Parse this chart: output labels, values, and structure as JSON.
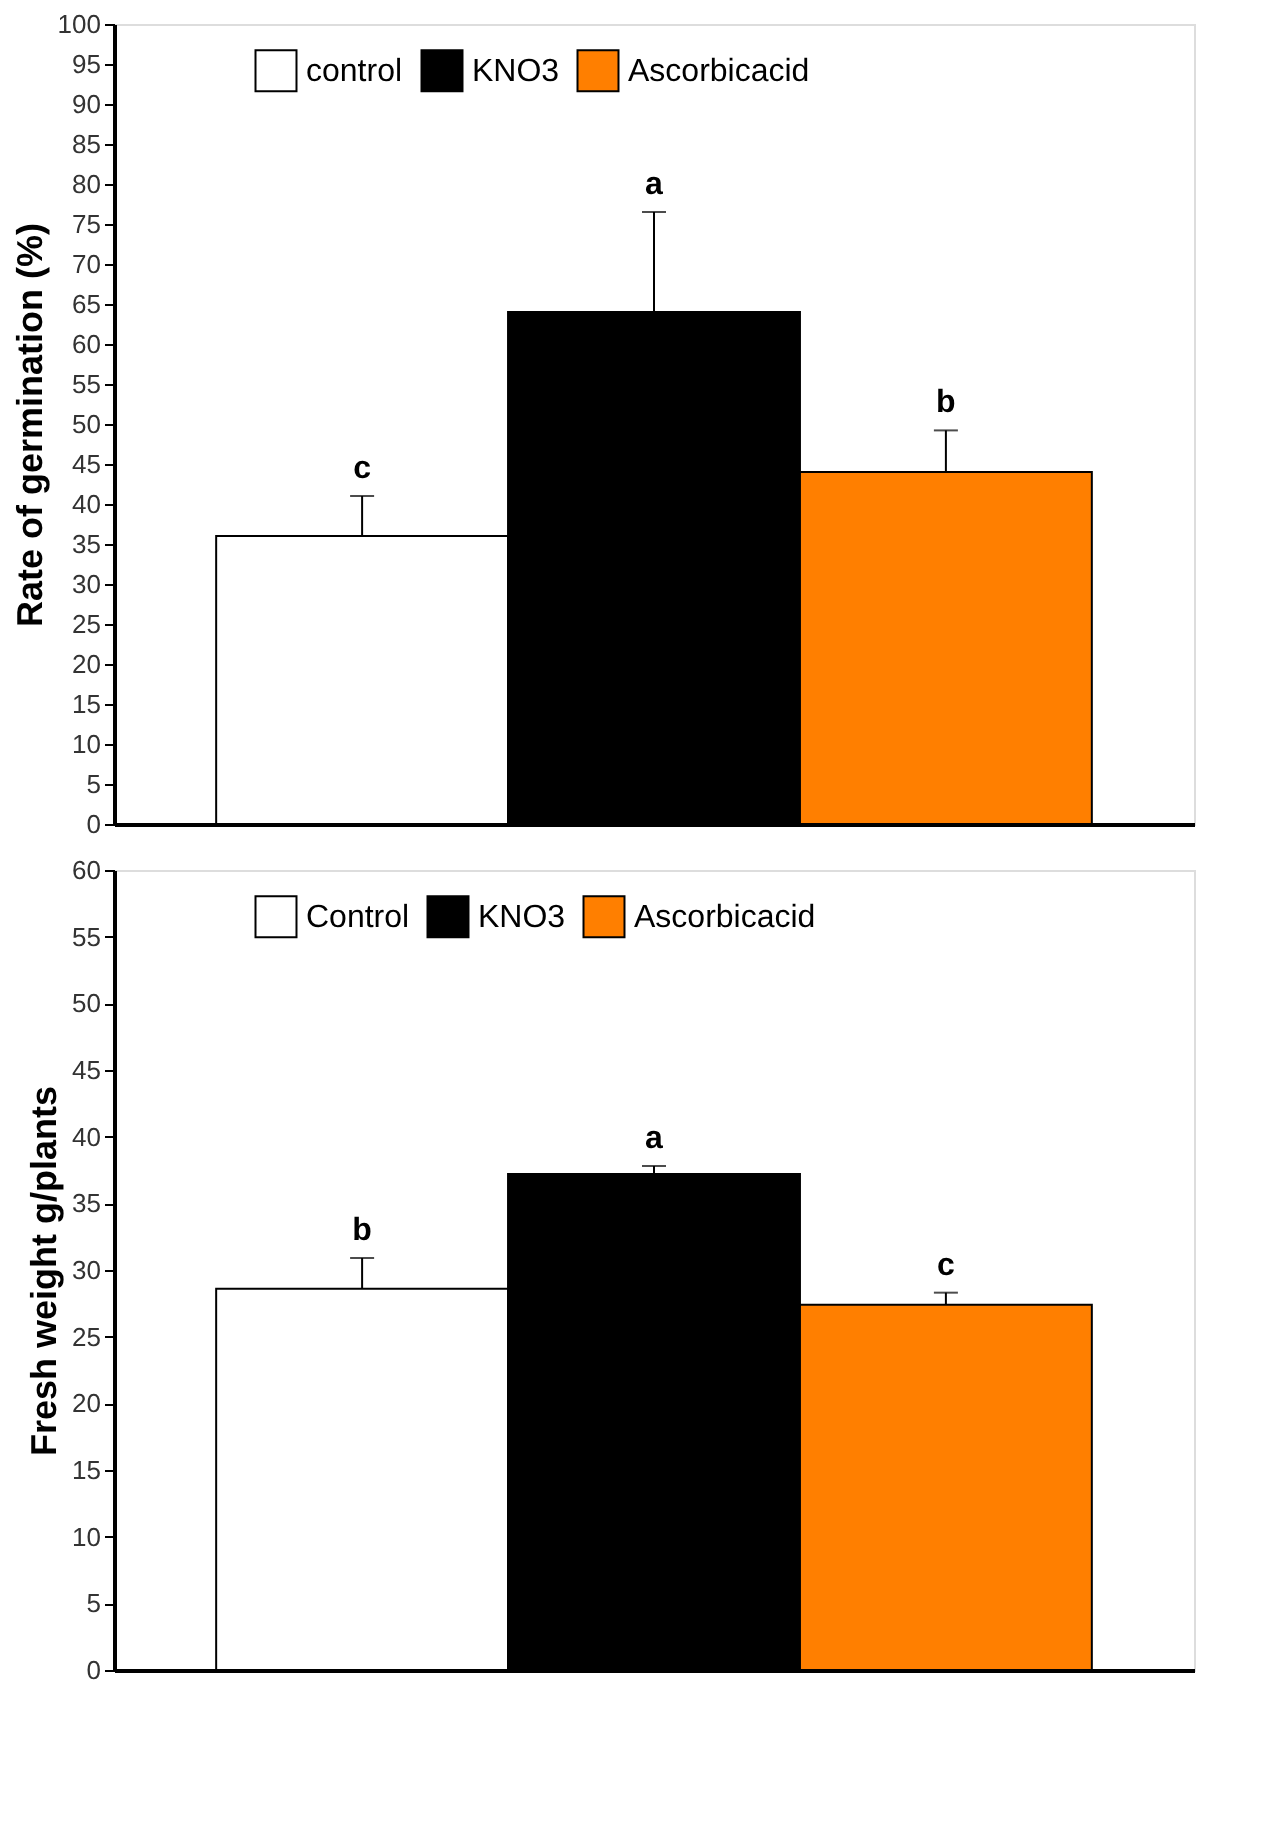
{
  "chart_data": [
    {
      "type": "bar",
      "ylabel": "Rate of  germination (%)",
      "categories": [
        null,
        null,
        null
      ],
      "ylim": [
        0,
        100
      ],
      "yticks": [
        0,
        5,
        10,
        15,
        20,
        25,
        30,
        35,
        40,
        45,
        50,
        55,
        60,
        65,
        70,
        75,
        80,
        85,
        90,
        95,
        100
      ],
      "legend": "top",
      "tick_labels": "y",
      "series": [
        {
          "name": "control",
          "color": "#ffffff",
          "values": [
            36,
            null,
            null
          ],
          "errors": [
            5,
            null,
            null
          ]
        },
        {
          "name": "KNO3",
          "color": "#000000",
          "values": [
            null,
            64,
            null
          ],
          "errors": [
            null,
            12.5,
            null
          ]
        },
        {
          "name": "Ascorbicacid",
          "color": "#ff7f00",
          "values": [
            null,
            null,
            44
          ],
          "errors": [
            null,
            null,
            5.2
          ]
        }
      ],
      "annotations": [
        "c",
        "a",
        "b"
      ]
    },
    {
      "type": "bar",
      "ylabel": "Fresh weight g/plants",
      "categories": [
        null,
        null,
        null
      ],
      "ylim": [
        0,
        60
      ],
      "yticks": [
        0,
        5,
        10,
        15,
        20,
        25,
        30,
        35,
        40,
        45,
        50,
        55,
        60
      ],
      "legend": "top",
      "tick_labels": "y",
      "series": [
        {
          "name": "Control",
          "color": "#ffffff",
          "values": [
            28.6,
            null,
            null
          ],
          "errors": [
            2.3,
            null,
            null
          ]
        },
        {
          "name": "KNO3",
          "color": "#000000",
          "values": [
            null,
            37.2,
            null
          ],
          "errors": [
            null,
            0.6,
            null
          ]
        },
        {
          "name": "Ascorbicacid",
          "color": "#ff7f00",
          "values": [
            null,
            null,
            27.4
          ],
          "errors": [
            null,
            null,
            0.9
          ]
        }
      ],
      "annotations": [
        "b",
        "a",
        "c"
      ]
    }
  ]
}
